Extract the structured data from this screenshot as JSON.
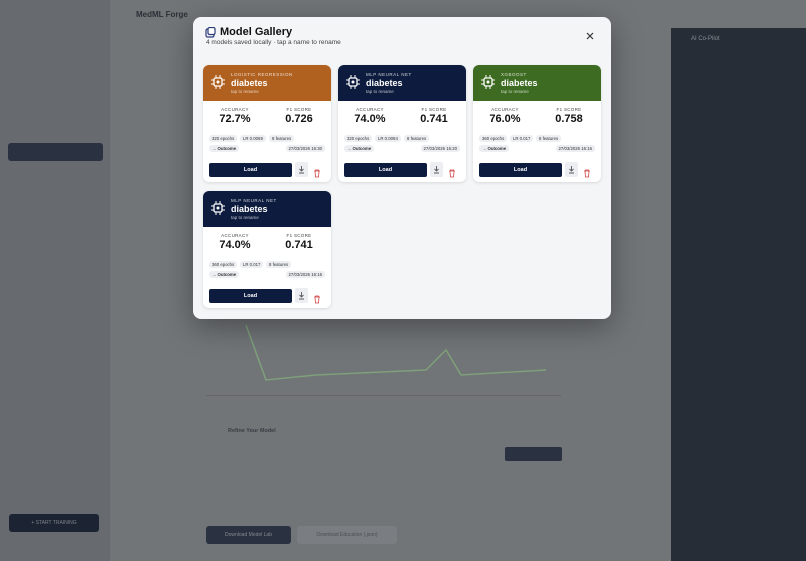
{
  "app": {
    "brand": "MedML Forge",
    "panel_title": "AI Co-Pilot",
    "section": "Refine Your Model",
    "train_button": "+ START TRAINING",
    "download_lab": "Download Model Lab",
    "download_edu": "Download Education (.json)"
  },
  "header": {
    "title": "Model Gallery",
    "subtitle": "4 models saved locally · tap a name to rename"
  },
  "cards": [
    {
      "type": "LOGISTIC REGRESSION",
      "name": "diabetes",
      "hint": "tap to rename",
      "color": "#b0601f",
      "metrics": [
        {
          "label": "ACCURACY",
          "value": "72.7%"
        },
        {
          "label": "F1 SCORE",
          "value": "0.726"
        }
      ],
      "chips": [
        "320 epochs",
        "LR 0.0069",
        "8 features"
      ],
      "target": "→ Outcome",
      "date": "27/03/2026 16:30",
      "button": "Load"
    },
    {
      "type": "MLP NEURAL NET",
      "name": "diabetes",
      "hint": "tap to rename",
      "color": "#0d1b3e",
      "metrics": [
        {
          "label": "ACCURACY",
          "value": "74.0%"
        },
        {
          "label": "F1 SCORE",
          "value": "0.741"
        }
      ],
      "chips": [
        "320 epochs",
        "LR 0.0094",
        "8 features"
      ],
      "target": "→ Outcome",
      "date": "27/03/2026 16:20",
      "button": "Load"
    },
    {
      "type": "XGBOOST",
      "name": "diabetes",
      "hint": "tap to rename",
      "color": "#3d6b22",
      "metrics": [
        {
          "label": "ACCURACY",
          "value": "76.0%"
        },
        {
          "label": "F1 SCORE",
          "value": "0.758"
        }
      ],
      "chips": [
        "360 epochs",
        "LR 0.017",
        "8 features"
      ],
      "target": "→ Outcome",
      "date": "27/03/2026 16:16",
      "button": "Load"
    },
    {
      "type": "MLP NEURAL NET",
      "name": "diabetes",
      "hint": "tap to rename",
      "color": "#0d1b3e",
      "metrics": [
        {
          "label": "ACCURACY",
          "value": "74.0%"
        },
        {
          "label": "F1 SCORE",
          "value": "0.741"
        }
      ],
      "chips": [
        "360 epochs",
        "LR 0.017",
        "8 features"
      ],
      "target": "→ Outcome",
      "date": "27/03/2026 16:16",
      "button": "Load"
    }
  ]
}
